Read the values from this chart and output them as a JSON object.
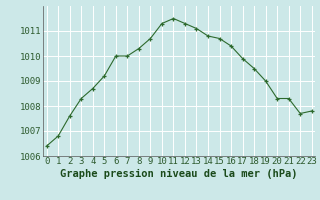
{
  "x": [
    0,
    1,
    2,
    3,
    4,
    5,
    6,
    7,
    8,
    9,
    10,
    11,
    12,
    13,
    14,
    15,
    16,
    17,
    18,
    19,
    20,
    21,
    22,
    23
  ],
  "y": [
    1006.4,
    1006.8,
    1007.6,
    1008.3,
    1008.7,
    1009.2,
    1010.0,
    1010.0,
    1010.3,
    1010.7,
    1011.3,
    1011.5,
    1011.3,
    1011.1,
    1010.8,
    1010.7,
    1010.4,
    1009.9,
    1009.5,
    1009.0,
    1008.3,
    1008.3,
    1007.7,
    1007.8
  ],
  "xlabel": "Graphe pression niveau de la mer (hPa)",
  "ylim": [
    1006.0,
    1012.0
  ],
  "xlim": [
    -0.3,
    23.3
  ],
  "yticks": [
    1006,
    1007,
    1008,
    1009,
    1010,
    1011
  ],
  "xticks": [
    0,
    1,
    2,
    3,
    4,
    5,
    6,
    7,
    8,
    9,
    10,
    11,
    12,
    13,
    14,
    15,
    16,
    17,
    18,
    19,
    20,
    21,
    22,
    23
  ],
  "line_color": "#2d6a2d",
  "marker_color": "#2d6a2d",
  "bg_color": "#cce8e8",
  "grid_color": "#ffffff",
  "xlabel_color": "#1a4a1a",
  "tick_label_color": "#2d5a2d",
  "xlabel_fontsize": 7.5,
  "tick_fontsize": 6.5,
  "bottom_bar_color": "#4a7a4a"
}
